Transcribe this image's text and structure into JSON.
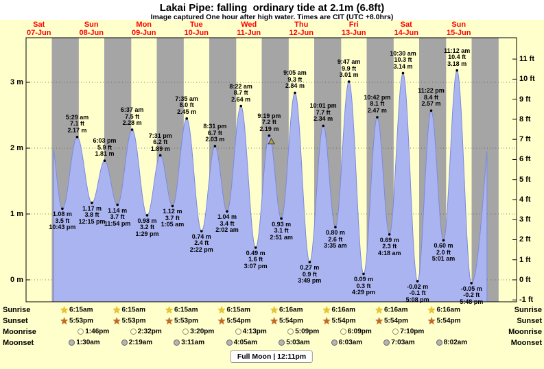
{
  "header": {
    "title": "Lakai Pipe: falling  ordinary tide at 2.1m (6.8ft)",
    "subtitle": "Image captured One hour after high water. Times are CIT (UTC +8.0hrs)"
  },
  "colors": {
    "page_bg": "#ffffcc",
    "day_band": "#ffffcc",
    "night_band": "#a5a5a5",
    "tide_fill": "#aab4f0",
    "tide_stroke": "#7b89e0",
    "date_label": "#ff0000",
    "current_marker_fill": "#b8a53c"
  },
  "chart_data": {
    "type": "area",
    "title": "Lakai Pipe: falling  ordinary tide at 2.1m (6.8ft)",
    "x_axis": {
      "days": [
        {
          "name": "Sat",
          "date": "07-Jun",
          "day_index": 0
        },
        {
          "name": "Sun",
          "date": "08-Jun",
          "day_index": 1
        },
        {
          "name": "Mon",
          "date": "09-Jun",
          "day_index": 2
        },
        {
          "name": "Tue",
          "date": "10-Jun",
          "day_index": 3
        },
        {
          "name": "Wed",
          "date": "11-Jun",
          "day_index": 4
        },
        {
          "name": "Thu",
          "date": "12-Jun",
          "day_index": 5
        },
        {
          "name": "Fri",
          "date": "13-Jun",
          "day_index": 6
        },
        {
          "name": "Sat",
          "date": "14-Jun",
          "day_index": 7
        },
        {
          "name": "Sun",
          "date": "15-Jun",
          "day_index": 8
        }
      ]
    },
    "y_axis_left": {
      "unit": "m",
      "ticks": [
        {
          "label": "3 m",
          "value": 3
        },
        {
          "label": "2 m",
          "value": 2
        },
        {
          "label": "1 m",
          "value": 1
        },
        {
          "label": "0 m",
          "value": 0
        }
      ]
    },
    "y_axis_right": {
      "unit": "ft",
      "ticks": [
        {
          "label": "11 ft",
          "value": 11
        },
        {
          "label": "10 ft",
          "value": 10
        },
        {
          "label": "9 ft",
          "value": 9
        },
        {
          "label": "8 ft",
          "value": 8
        },
        {
          "label": "7 ft",
          "value": 7
        },
        {
          "label": "6 ft",
          "value": 6
        },
        {
          "label": "5 ft",
          "value": 5
        },
        {
          "label": "4 ft",
          "value": 4
        },
        {
          "label": "3 ft",
          "value": 3
        },
        {
          "label": "2 ft",
          "value": 2
        },
        {
          "label": "1 ft",
          "value": 1
        },
        {
          "label": "0 ft",
          "value": 0
        },
        {
          "label": "-1 ft",
          "value": -1
        }
      ]
    },
    "tide_extremes": [
      {
        "type": "low",
        "t": 22.717,
        "height_m": 1.08,
        "height_ft": 3.5,
        "time": "10:43 pm"
      },
      {
        "type": "high",
        "t": 29.483,
        "height_m": 2.17,
        "height_ft": 7.1,
        "time": "5:29 am"
      },
      {
        "type": "low",
        "t": 36.25,
        "height_m": 1.17,
        "height_ft": 3.8,
        "time": "12:15 pm"
      },
      {
        "type": "high",
        "t": 42.05,
        "height_m": 1.81,
        "height_ft": 5.9,
        "time": "6:03 pm"
      },
      {
        "type": "low",
        "t": 47.9,
        "height_m": 1.14,
        "height_ft": 3.7,
        "time": "11:54 pm"
      },
      {
        "type": "high",
        "t": 54.617,
        "height_m": 2.28,
        "height_ft": 7.5,
        "time": "6:37 am"
      },
      {
        "type": "low",
        "t": 61.483,
        "height_m": 0.98,
        "height_ft": 3.2,
        "time": "1:29 pm"
      },
      {
        "type": "high",
        "t": 67.517,
        "height_m": 1.89,
        "height_ft": 6.2,
        "time": "7:31 pm"
      },
      {
        "type": "low",
        "t": 73.083,
        "height_m": 1.12,
        "height_ft": 3.7,
        "time": "1:05 am"
      },
      {
        "type": "high",
        "t": 79.583,
        "height_m": 2.45,
        "height_ft": 8.0,
        "time": "7:35 am"
      },
      {
        "type": "low",
        "t": 86.367,
        "height_m": 0.74,
        "height_ft": 2.4,
        "time": "2:22 pm"
      },
      {
        "type": "high",
        "t": 92.517,
        "height_m": 2.03,
        "height_ft": 6.7,
        "time": "8:31 pm"
      },
      {
        "type": "low",
        "t": 98.033,
        "height_m": 1.04,
        "height_ft": 3.4,
        "time": "2:02 am"
      },
      {
        "type": "high",
        "t": 104.367,
        "height_m": 2.64,
        "height_ft": 8.7,
        "time": "8:22 am"
      },
      {
        "type": "low",
        "t": 111.117,
        "height_m": 0.49,
        "height_ft": 1.6,
        "time": "3:07 pm"
      },
      {
        "type": "high",
        "t": 117.317,
        "height_m": 2.19,
        "height_ft": 7.2,
        "time": "9:19 pm"
      },
      {
        "type": "low",
        "t": 122.85,
        "height_m": 0.93,
        "height_ft": 3.1,
        "time": "2:51 am"
      },
      {
        "type": "high",
        "t": 129.083,
        "height_m": 2.84,
        "height_ft": 9.3,
        "time": "9:05 am"
      },
      {
        "type": "low",
        "t": 135.817,
        "height_m": 0.27,
        "height_ft": 0.9,
        "time": "3:49 pm"
      },
      {
        "type": "high",
        "t": 142.017,
        "height_m": 2.34,
        "height_ft": 7.7,
        "time": "10:01 pm"
      },
      {
        "type": "low",
        "t": 147.583,
        "height_m": 0.8,
        "height_ft": 2.6,
        "time": "3:35 am"
      },
      {
        "type": "high",
        "t": 153.783,
        "height_m": 3.01,
        "height_ft": 9.9,
        "time": "9:47 am"
      },
      {
        "type": "low",
        "t": 160.483,
        "height_m": 0.09,
        "height_ft": 0.3,
        "time": "4:29 pm"
      },
      {
        "type": "high",
        "t": 166.7,
        "height_m": 2.47,
        "height_ft": 8.1,
        "time": "10:42 pm"
      },
      {
        "type": "low",
        "t": 172.3,
        "height_m": 0.69,
        "height_ft": 2.3,
        "time": "4:18 am"
      },
      {
        "type": "high",
        "t": 178.5,
        "height_m": 3.14,
        "height_ft": 10.3,
        "time": "10:30 am"
      },
      {
        "type": "low",
        "t": 185.133,
        "height_m": -0.02,
        "height_ft": -0.1,
        "time": "5:08 pm"
      },
      {
        "type": "high",
        "t": 191.367,
        "height_m": 2.57,
        "height_ft": 8.4,
        "time": "11:22 pm"
      },
      {
        "type": "low",
        "t": 197.017,
        "height_m": 0.6,
        "height_ft": 2.0,
        "time": "5:01 am"
      },
      {
        "type": "high",
        "t": 203.2,
        "height_m": 3.18,
        "height_ft": 10.4,
        "time": "11:12 am"
      },
      {
        "type": "low",
        "t": 209.8,
        "height_m": -0.05,
        "height_ft": -0.2,
        "time": "5:48 pm"
      }
    ],
    "curve": {
      "pre": {
        "t": 17.2,
        "height_m": 2.17
      },
      "post": {
        "t": 222.2,
        "height_m": 3.22
      },
      "t_start": 18.7,
      "t_end": 216.9
    },
    "current_marker": {
      "t": 118.3,
      "height_m": 2.1
    },
    "astro": {
      "rows": [
        {
          "id": "sunrise",
          "label": "Sunrise",
          "icon": "sunrise-star",
          "entries": [
            {
              "day": 1,
              "time": "6:15am"
            },
            {
              "day": 2,
              "time": "6:15am"
            },
            {
              "day": 3,
              "time": "6:15am"
            },
            {
              "day": 4,
              "time": "6:15am"
            },
            {
              "day": 5,
              "time": "6:16am"
            },
            {
              "day": 6,
              "time": "6:16am"
            },
            {
              "day": 7,
              "time": "6:16am"
            },
            {
              "day": 8,
              "time": "6:16am"
            }
          ]
        },
        {
          "id": "sunset",
          "label": "Sunset",
          "icon": "sunset-star",
          "entries": [
            {
              "day": 1,
              "time": "5:53pm"
            },
            {
              "day": 2,
              "time": "5:53pm"
            },
            {
              "day": 3,
              "time": "5:53pm"
            },
            {
              "day": 4,
              "time": "5:54pm"
            },
            {
              "day": 5,
              "time": "5:54pm"
            },
            {
              "day": 6,
              "time": "5:54pm"
            },
            {
              "day": 7,
              "time": "5:54pm"
            },
            {
              "day": 8,
              "time": "5:54pm"
            }
          ]
        },
        {
          "id": "moonrise",
          "label": "Moonrise",
          "icon": "moonrise-circle",
          "entries": [
            {
              "day": 1,
              "time": "1:46pm"
            },
            {
              "day": 2,
              "time": "2:32pm"
            },
            {
              "day": 3,
              "time": "3:20pm"
            },
            {
              "day": 4,
              "time": "4:13pm"
            },
            {
              "day": 5,
              "time": "5:09pm"
            },
            {
              "day": 6,
              "time": "6:09pm"
            },
            {
              "day": 7,
              "time": "7:10pm"
            }
          ]
        },
        {
          "id": "moonset",
          "label": "Moonset",
          "icon": "moonset-circle",
          "entries": [
            {
              "day": 1,
              "time": "1:30am"
            },
            {
              "day": 2,
              "time": "2:19am"
            },
            {
              "day": 3,
              "time": "3:11am"
            },
            {
              "day": 4,
              "time": "4:05am"
            },
            {
              "day": 5,
              "time": "5:03am"
            },
            {
              "day": 6,
              "time": "6:03am"
            },
            {
              "day": 7,
              "time": "7:03am"
            },
            {
              "day": 8,
              "time": "8:02am"
            }
          ]
        }
      ],
      "full_moon": "Full Moon | 12:11pm"
    }
  }
}
